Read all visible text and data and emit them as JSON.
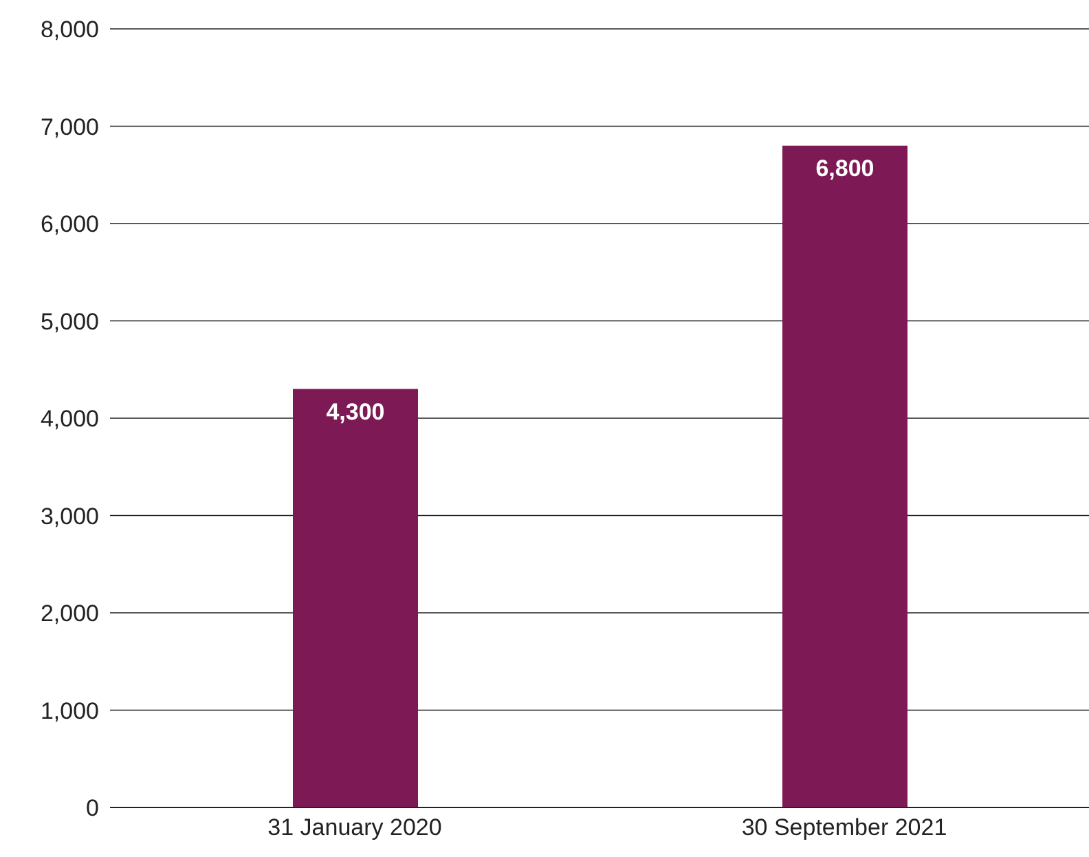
{
  "chart_data": {
    "type": "bar",
    "categories": [
      "31 January 2020",
      "30 September 2021"
    ],
    "values": [
      4300,
      6800
    ],
    "color": "#7d1a55",
    "ylim": [
      0,
      8000
    ],
    "yticks": [
      {
        "value": 0,
        "label": "0"
      },
      {
        "value": 1000,
        "label": "1,000"
      },
      {
        "value": 2000,
        "label": "2,000"
      },
      {
        "value": 3000,
        "label": "3,000"
      },
      {
        "value": 4000,
        "label": "4,000"
      },
      {
        "value": 5000,
        "label": "5,000"
      },
      {
        "value": 6000,
        "label": "6,000"
      },
      {
        "value": 7000,
        "label": "7,000"
      },
      {
        "value": 8000,
        "label": "8,000"
      }
    ],
    "grid": "y",
    "value_labels": [
      "4,300",
      "6,800"
    ]
  }
}
